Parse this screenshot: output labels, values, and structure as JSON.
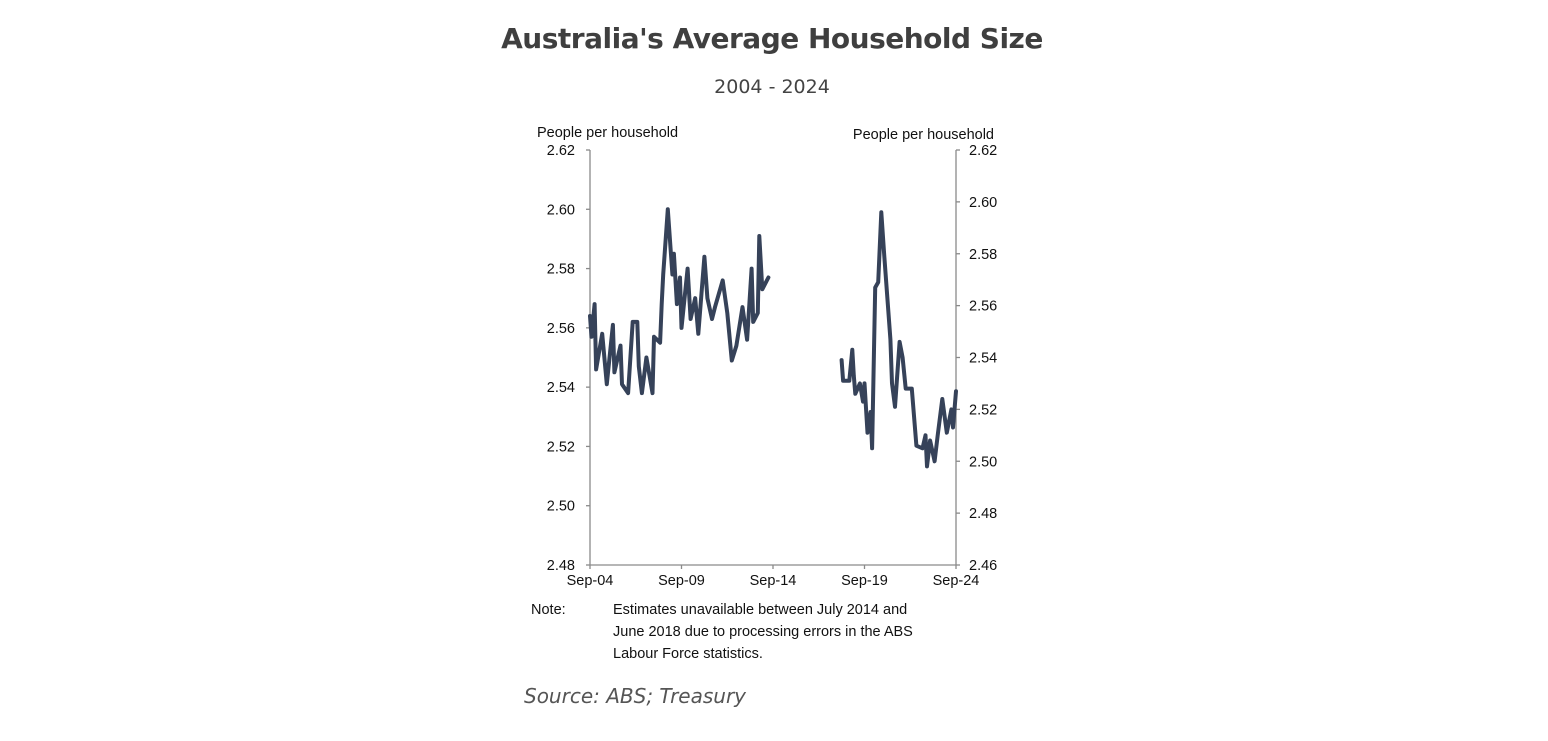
{
  "header": {
    "title": "Australia's Average Household Size",
    "subtitle": "2004 - 2024"
  },
  "chart_data": {
    "type": "line",
    "title": "Australia's Average Household Size",
    "subtitle": "2004 - 2024",
    "left_axis": {
      "label": "People per household",
      "ylim": [
        2.48,
        2.62
      ],
      "ticks": [
        "2.62",
        "2.60",
        "2.58",
        "2.56",
        "2.54",
        "2.52",
        "2.50",
        "2.48"
      ]
    },
    "right_axis": {
      "label": "People per household",
      "ylim": [
        2.46,
        2.62
      ],
      "ticks": [
        "2.62",
        "2.60",
        "2.58",
        "2.56",
        "2.54",
        "2.52",
        "2.50",
        "2.48",
        "2.46"
      ]
    },
    "x_axis": {
      "range": [
        "2004-09",
        "2024-09"
      ],
      "ticks": [
        "Sep-04",
        "Sep-09",
        "Sep-14",
        "Sep-19",
        "Sep-24"
      ]
    },
    "grid": false,
    "line_color": "#364259",
    "series": [
      {
        "axis": "left",
        "points": [
          [
            "2004-09",
            2.564
          ],
          [
            "2004-10",
            2.557
          ],
          [
            "2004-12",
            2.568
          ],
          [
            "2005-01",
            2.546
          ],
          [
            "2005-05",
            2.558
          ],
          [
            "2005-08",
            2.541
          ],
          [
            "2005-12",
            2.561
          ],
          [
            "2006-01",
            2.545
          ],
          [
            "2006-05",
            2.554
          ],
          [
            "2006-06",
            2.541
          ],
          [
            "2006-10",
            2.538
          ],
          [
            "2007-01",
            2.562
          ],
          [
            "2007-04",
            2.562
          ],
          [
            "2007-05",
            2.547
          ],
          [
            "2007-07",
            2.538
          ],
          [
            "2007-10",
            2.55
          ],
          [
            "2008-02",
            2.538
          ],
          [
            "2008-03",
            2.557
          ],
          [
            "2008-07",
            2.555
          ],
          [
            "2008-08",
            2.568
          ],
          [
            "2008-09",
            2.578
          ],
          [
            "2008-12",
            2.6
          ],
          [
            "2009-03",
            2.578
          ],
          [
            "2009-04",
            2.585
          ],
          [
            "2009-06",
            2.568
          ],
          [
            "2009-08",
            2.577
          ],
          [
            "2009-09",
            2.56
          ],
          [
            "2010-01",
            2.58
          ],
          [
            "2010-03",
            2.563
          ],
          [
            "2010-06",
            2.57
          ],
          [
            "2010-08",
            2.558
          ],
          [
            "2010-12",
            2.584
          ],
          [
            "2011-02",
            2.57
          ],
          [
            "2011-05",
            2.563
          ],
          [
            "2011-07",
            2.567
          ],
          [
            "2011-12",
            2.576
          ],
          [
            "2012-03",
            2.565
          ],
          [
            "2012-06",
            2.549
          ],
          [
            "2012-09",
            2.554
          ],
          [
            "2013-01",
            2.567
          ],
          [
            "2013-04",
            2.556
          ],
          [
            "2013-07",
            2.58
          ],
          [
            "2013-08",
            2.562
          ],
          [
            "2013-11",
            2.565
          ],
          [
            "2013-12",
            2.591
          ],
          [
            "2014-02",
            2.573
          ],
          [
            "2014-06",
            2.577
          ]
        ]
      },
      {
        "axis": "right",
        "points": [
          [
            "2018-06",
            2.539
          ],
          [
            "2018-07",
            2.531
          ],
          [
            "2018-11",
            2.531
          ],
          [
            "2019-01",
            2.543
          ],
          [
            "2019-02",
            2.533
          ],
          [
            "2019-03",
            2.526
          ],
          [
            "2019-06",
            2.53
          ],
          [
            "2019-08",
            2.523
          ],
          [
            "2019-09",
            2.53
          ],
          [
            "2019-11",
            2.511
          ],
          [
            "2020-01",
            2.519
          ],
          [
            "2020-02",
            2.505
          ],
          [
            "2020-04",
            2.567
          ],
          [
            "2020-06",
            2.569
          ],
          [
            "2020-08",
            2.596
          ],
          [
            "2020-10",
            2.579
          ],
          [
            "2021-02",
            2.547
          ],
          [
            "2021-03",
            2.53
          ],
          [
            "2021-05",
            2.521
          ],
          [
            "2021-08",
            2.546
          ],
          [
            "2021-10",
            2.54
          ],
          [
            "2021-12",
            2.528
          ],
          [
            "2022-04",
            2.528
          ],
          [
            "2022-07",
            2.506
          ],
          [
            "2022-11",
            2.505
          ],
          [
            "2023-01",
            2.51
          ],
          [
            "2023-02",
            2.498
          ],
          [
            "2023-04",
            2.508
          ],
          [
            "2023-07",
            2.5
          ],
          [
            "2023-09",
            2.51
          ],
          [
            "2023-12",
            2.524
          ],
          [
            "2024-03",
            2.511
          ],
          [
            "2024-06",
            2.52
          ],
          [
            "2024-07",
            2.513
          ],
          [
            "2024-09",
            2.527
          ]
        ]
      }
    ],
    "note_label": "Note:",
    "note_lines": [
      "Estimates unavailable between July 2014 and",
      "June 2018 due to processing errors in the ABS",
      "Labour Force statistics."
    ]
  },
  "footer": {
    "source": "Source: ABS; Treasury"
  }
}
